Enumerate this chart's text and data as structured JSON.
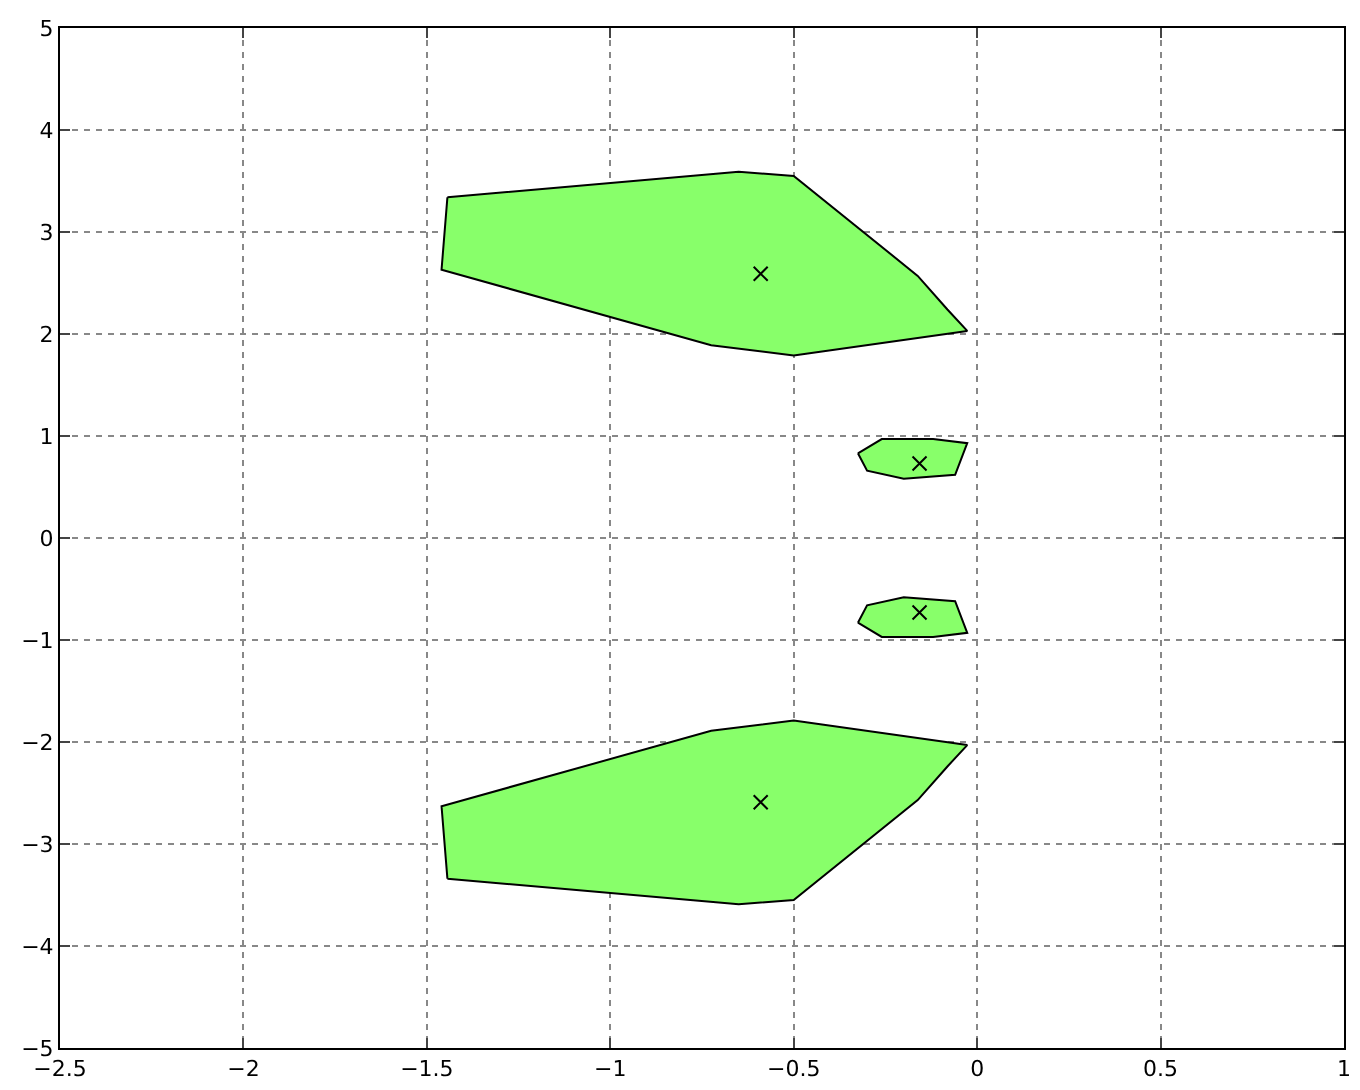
{
  "chart_data": {
    "type": "area",
    "xlim": [
      -2.5,
      1
    ],
    "ylim": [
      -5,
      5
    ],
    "xticks": [
      -2.5,
      -2,
      -1.5,
      -1,
      -0.5,
      0,
      0.5,
      1
    ],
    "yticks": [
      -5,
      -4,
      -3,
      -2,
      -1,
      0,
      1,
      2,
      3,
      4,
      5
    ],
    "grid": true,
    "series": [
      {
        "color": "#88ff6a",
        "x": [
          -1.444,
          -1.46,
          -0.725,
          -0.5,
          -0.027,
          -0.081,
          -0.162,
          -0.5,
          -0.65,
          -1.444
        ],
        "values": [
          3.34,
          2.63,
          1.89,
          1.79,
          2.03,
          2.24,
          2.57,
          3.55,
          3.59,
          3.34
        ]
      },
      {
        "color": "#88ff6a",
        "x": [
          -0.325,
          -0.3,
          -0.2,
          -0.06,
          -0.027,
          -0.12,
          -0.26,
          -0.325
        ],
        "values": [
          0.83,
          0.66,
          0.58,
          0.62,
          0.93,
          0.97,
          0.97,
          0.83
        ]
      },
      {
        "color": "#88ff6a",
        "x": [
          -0.325,
          -0.3,
          -0.2,
          -0.06,
          -0.027,
          -0.12,
          -0.26,
          -0.325
        ],
        "values": [
          -0.83,
          -0.66,
          -0.58,
          -0.62,
          -0.93,
          -0.97,
          -0.97,
          -0.83
        ]
      },
      {
        "color": "#88ff6a",
        "x": [
          -1.444,
          -1.46,
          -0.725,
          -0.5,
          -0.027,
          -0.081,
          -0.162,
          -0.5,
          -0.65,
          -1.444
        ],
        "values": [
          -3.34,
          -2.63,
          -1.89,
          -1.79,
          -2.03,
          -2.24,
          -2.57,
          -3.55,
          -3.59,
          -3.34
        ]
      },
      {
        "type": "scatter",
        "color": "#000000",
        "marker": "cross",
        "x": [
          -0.59,
          -0.157,
          -0.157,
          -0.59
        ],
        "values": [
          2.59,
          0.73,
          -0.73,
          -2.59
        ]
      }
    ]
  }
}
